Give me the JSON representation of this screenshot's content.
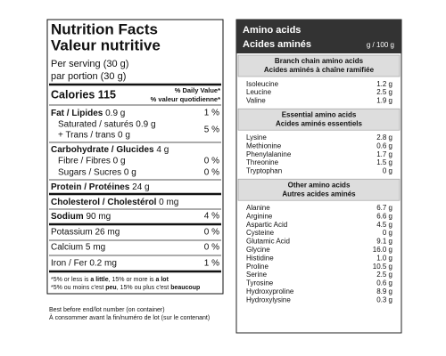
{
  "nutrition": {
    "title": "Nutrition Facts",
    "title_fr": "Valeur nutritive",
    "serving": "Per serving (30 g)",
    "serving_fr": "par portion (30 g)",
    "calories": "Calories 115",
    "dv_header": "% Daily Value*",
    "dv_header_fr": "% valeur quotidienne*",
    "fat": {
      "label": "Fat / Lipides",
      "amount": "0.9 g",
      "dv": "1 %"
    },
    "saturated": "Saturated / saturés 0.9 g",
    "trans": "+ Trans / trans 0 g",
    "sat_trans_dv": "5 %",
    "carbohydrate": {
      "label": "Carbohydrate / Glucides",
      "amount": "4 g"
    },
    "fibre": {
      "label": "Fibre / Fibres 0 g",
      "dv": "0 %"
    },
    "sugars": {
      "label": "Sugars / Sucres 0 g",
      "dv": "0 %"
    },
    "protein": {
      "label": "Protein / Protéines",
      "amount": "24 g"
    },
    "cholesterol": {
      "label": "Cholesterol / Cholestérol",
      "amount": "0 mg"
    },
    "sodium": {
      "label": "Sodium",
      "amount": "90 mg",
      "dv": "4 %"
    },
    "potassium": {
      "label": "Potassium 26 mg",
      "dv": "0 %"
    },
    "calcium": {
      "label": "Calcium 5 mg",
      "dv": "0 %"
    },
    "iron": {
      "label": "Iron / Fer 0.2 mg",
      "dv": "1 %"
    },
    "footnote": [
      "*5% or less is ",
      "a little",
      ", 15% or more is ",
      "a lot"
    ],
    "footnote_fr": [
      "*5% ou moins c'est ",
      "peu",
      ", 15% ou plus c'est ",
      "beaucoup"
    ]
  },
  "lot_note": "Best before end/lot number (on container)",
  "lot_note_fr": "À consommer avant la fin/numéro de lot (sur le contenant)",
  "amino": {
    "title": "Amino acids",
    "title_fr": "Acides aminés",
    "unit": "g / 100 g",
    "sections": [
      {
        "title": "Branch chain amino acids",
        "title_fr": "Acides aminés à chaîne ramifiée",
        "items": [
          [
            "Isoleucine",
            "1.2 g"
          ],
          [
            "Leucine",
            "2.5 g"
          ],
          [
            "Valine",
            "1.9 g"
          ]
        ]
      },
      {
        "title": "Essential amino acids",
        "title_fr": "Acides aminés essentiels",
        "items": [
          [
            "Lysine",
            "2.8 g"
          ],
          [
            "Methionine",
            "0.6 g"
          ],
          [
            "Phenylalanine",
            "1.7 g"
          ],
          [
            "Threonine",
            "1.5 g"
          ],
          [
            "Tryptophan",
            "0 g"
          ]
        ]
      },
      {
        "title": "Other amino acids",
        "title_fr": "Autres acides aminés",
        "items": [
          [
            "Alanine",
            "6.7 g"
          ],
          [
            "Arginine",
            "6.6 g"
          ],
          [
            "Aspartic Acid",
            "4.5 g"
          ],
          [
            "Cysteine",
            "0 g"
          ],
          [
            "Glutamic Acid",
            "9.1 g"
          ],
          [
            "Glycine",
            "16.0 g"
          ],
          [
            "Histidine",
            "1.0 g"
          ],
          [
            "Proline",
            "10.5 g"
          ],
          [
            "Serine",
            "2.5 g"
          ],
          [
            "Tyrosine",
            "0.6 g"
          ],
          [
            "Hydroxyproline",
            "8.9 g"
          ],
          [
            "Hydroxylysine",
            "0.3 g"
          ]
        ]
      }
    ]
  }
}
